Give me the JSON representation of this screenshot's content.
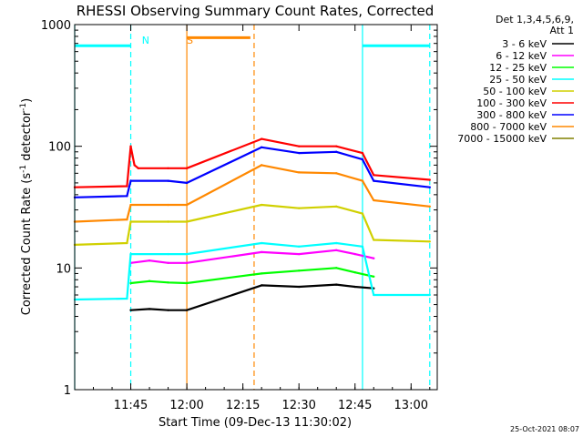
{
  "chart_data": {
    "type": "line",
    "title": "RHESSI Observing Summary Count Rates, Corrected",
    "xlabel": "Start Time (09-Dec-13 11:30:02)",
    "ylabel": "Corrected Count Rate (s",
    "ylabel_sup1": "-1",
    "ylabel_mid": " detector",
    "ylabel_sup2": "-1",
    "ylabel_end": ")",
    "y_scale": "log",
    "ylim": [
      1,
      1000
    ],
    "xlim": [
      "11:30",
      "13:07"
    ],
    "x_ticks": [
      "11:45",
      "12:00",
      "12:15",
      "12:30",
      "12:45",
      "13:00"
    ],
    "y_ticks": [
      "1",
      "10",
      "100",
      "1000"
    ],
    "legend_header": [
      "Det 1,3,4,5,6,9,",
      "Att 1"
    ],
    "series": [
      {
        "name": "3 - 6 keV",
        "color": "#000000",
        "x": [
          "11:45",
          "11:50",
          "11:55",
          "12:00",
          "12:20",
          "12:30",
          "12:40",
          "12:45",
          "12:50"
        ],
        "y": [
          4.5,
          4.6,
          4.5,
          4.5,
          7.2,
          7.0,
          7.3,
          7.0,
          6.8
        ]
      },
      {
        "name": "6 - 12 keV",
        "color": "#ff00ff",
        "x": [
          "11:45",
          "11:50",
          "11:55",
          "12:00",
          "12:20",
          "12:30",
          "12:40",
          "12:45",
          "12:50"
        ],
        "y": [
          11.0,
          11.5,
          11.0,
          11.0,
          13.5,
          13.0,
          14.0,
          13.0,
          12.0
        ]
      },
      {
        "name": "12 - 25 keV",
        "color": "#00ff00",
        "x": [
          "11:45",
          "11:50",
          "11:55",
          "12:00",
          "12:20",
          "12:30",
          "12:40",
          "12:45",
          "12:50"
        ],
        "y": [
          7.5,
          7.8,
          7.6,
          7.5,
          9.0,
          9.5,
          10.0,
          9.2,
          8.5
        ]
      },
      {
        "name": "25 - 50 keV",
        "color": "#00ffff",
        "x": [
          "11:30",
          "11:44",
          "11:45",
          "11:55",
          "12:00",
          "12:20",
          "12:30",
          "12:40",
          "12:47",
          "12:50",
          "13:05"
        ],
        "y": [
          5.5,
          5.6,
          13.0,
          13.0,
          13.0,
          16.0,
          15.0,
          16.0,
          15.0,
          6.0,
          6.0
        ]
      },
      {
        "name": "50 - 100 keV",
        "color": "#d0d000",
        "x": [
          "11:30",
          "11:44",
          "11:45",
          "11:55",
          "12:00",
          "12:20",
          "12:30",
          "12:40",
          "12:47",
          "12:50",
          "13:05"
        ],
        "y": [
          15.5,
          16.0,
          24.0,
          24.0,
          24.0,
          33.0,
          31.0,
          32.0,
          28.0,
          17.0,
          16.5
        ]
      },
      {
        "name": "100 - 300 keV",
        "color": "#ff0000",
        "x": [
          "11:30",
          "11:44",
          "11:45",
          "11:46",
          "11:47",
          "11:55",
          "12:00",
          "12:20",
          "12:30",
          "12:40",
          "12:47",
          "12:50",
          "13:05"
        ],
        "y": [
          46.0,
          47.0,
          100.0,
          70.0,
          66.0,
          66.0,
          66.0,
          115.0,
          100.0,
          100.0,
          88.0,
          58.0,
          53.0
        ]
      },
      {
        "name": "300 - 800 keV",
        "color": "#0000ff",
        "x": [
          "11:30",
          "11:44",
          "11:45",
          "11:55",
          "12:00",
          "12:20",
          "12:30",
          "12:40",
          "12:47",
          "12:50",
          "13:05"
        ],
        "y": [
          38.0,
          39.0,
          52.0,
          52.0,
          50.0,
          98.0,
          88.0,
          90.0,
          78.0,
          52.0,
          46.0
        ]
      },
      {
        "name": "800 - 7000 keV",
        "color": "#ff8800",
        "x": [
          "11:30",
          "11:44",
          "11:45",
          "11:55",
          "12:00",
          "12:20",
          "12:30",
          "12:40",
          "12:47",
          "12:50",
          "13:05"
        ],
        "y": [
          24.0,
          25.0,
          33.0,
          33.0,
          33.0,
          70.0,
          61.0,
          60.0,
          52.0,
          36.0,
          32.0
        ]
      },
      {
        "name": "7000 - 15000 keV",
        "color": "#808000",
        "x": [],
        "y": []
      }
    ],
    "annotations": [
      {
        "text": "N",
        "color": "#00ffff",
        "x": "11:47"
      },
      {
        "text": "S",
        "color": "#ff8800",
        "x": "11:59"
      }
    ],
    "flags": [
      {
        "label": "N",
        "color": "#00ffff",
        "from": "11:30",
        "to": "11:45",
        "y": 670
      },
      {
        "label": "N",
        "color": "#00ffff",
        "from": "12:47",
        "to": "13:05",
        "y": 670
      },
      {
        "label": "S",
        "color": "#ff8800",
        "from": "12:00",
        "to": "12:17",
        "y": 780
      }
    ],
    "intervals": [
      {
        "color": "#00ffff",
        "x": "11:30",
        "style": "solid"
      },
      {
        "color": "#00ffff",
        "x": "11:45",
        "style": "dashed"
      },
      {
        "color": "#ff8800",
        "x": "12:00",
        "style": "solid"
      },
      {
        "color": "#ff8800",
        "x": "12:18",
        "style": "dashed"
      },
      {
        "color": "#00ffff",
        "x": "12:47",
        "style": "solid"
      },
      {
        "color": "#00ffff",
        "x": "13:05",
        "style": "dashed"
      }
    ],
    "grid": false,
    "legend_placement": "right"
  },
  "timestamp": "25-Oct-2021 08:07"
}
